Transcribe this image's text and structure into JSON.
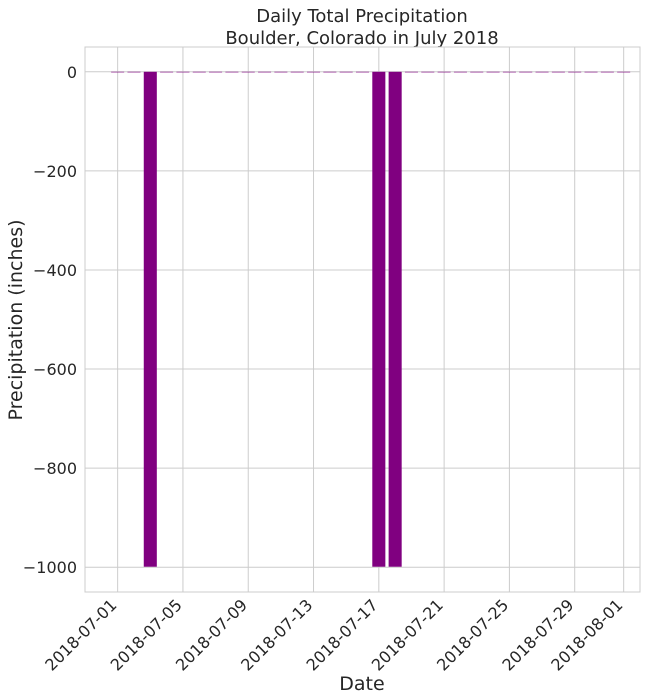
{
  "chart_data": {
    "type": "bar",
    "title": [
      "Daily Total Precipitation",
      "Boulder, Colorado in July 2018"
    ],
    "xlabel": "Date",
    "ylabel": "Precipitation (inches)",
    "bar_color": "#800080",
    "grid": true,
    "x_range": [
      "2018-06-29",
      "2018-08-02"
    ],
    "ylim": [
      -1050,
      50
    ],
    "x_ticks": [
      "2018-07-01",
      "2018-07-05",
      "2018-07-09",
      "2018-07-13",
      "2018-07-17",
      "2018-07-21",
      "2018-07-25",
      "2018-07-29",
      "2018-08-01"
    ],
    "y_ticks": [
      0,
      -200,
      -400,
      -600,
      -800,
      -1000
    ],
    "y_tick_labels": [
      "0",
      "−200",
      "−400",
      "−600",
      "−800",
      "−1000"
    ],
    "dates": [
      "2018-07-01",
      "2018-07-02",
      "2018-07-03",
      "2018-07-04",
      "2018-07-05",
      "2018-07-06",
      "2018-07-07",
      "2018-07-08",
      "2018-07-09",
      "2018-07-10",
      "2018-07-11",
      "2018-07-12",
      "2018-07-13",
      "2018-07-14",
      "2018-07-15",
      "2018-07-16",
      "2018-07-17",
      "2018-07-18",
      "2018-07-19",
      "2018-07-20",
      "2018-07-21",
      "2018-07-22",
      "2018-07-23",
      "2018-07-24",
      "2018-07-25",
      "2018-07-26",
      "2018-07-27",
      "2018-07-28",
      "2018-07-29",
      "2018-07-30",
      "2018-07-31",
      "2018-08-01"
    ],
    "values": [
      0,
      0,
      -999,
      0,
      0,
      0,
      0,
      0,
      0,
      0,
      0,
      0,
      0,
      0,
      0,
      0,
      -999,
      -999,
      0,
      0,
      0,
      0,
      0,
      0,
      0,
      0,
      0,
      0,
      0,
      0,
      0,
      0
    ]
  }
}
